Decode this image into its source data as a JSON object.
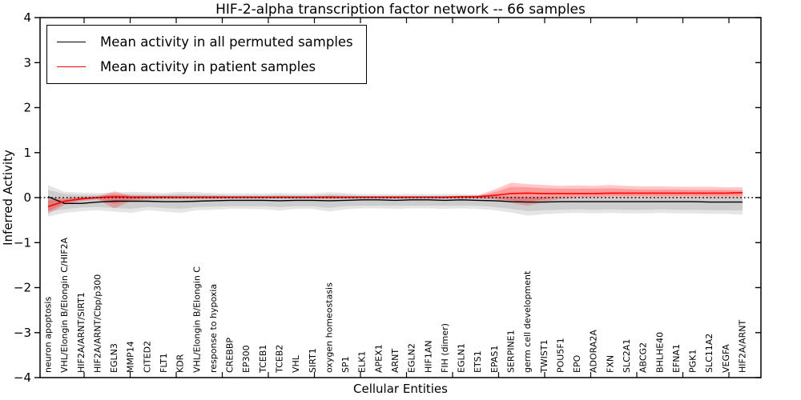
{
  "figure": {
    "background": "#ffffff",
    "frame_color": "#000000"
  },
  "axes": {
    "ylabel": "Inferred Activity",
    "xlabel": "Cellular Entities",
    "yticks": [
      "4",
      "3",
      "2",
      "1",
      "0",
      "−1",
      "−2",
      "−3",
      "−4"
    ]
  },
  "legend": {
    "items": [
      {
        "label": "Mean activity in all permuted samples",
        "color": "#000000"
      },
      {
        "label": "Mean activity in patient samples",
        "color": "#ff0000"
      }
    ]
  },
  "chart_data": {
    "type": "line",
    "title": "HIF-2-alpha transcription factor network -- 66 samples",
    "xlabel": "Cellular Entities",
    "ylabel": "Inferred Activity",
    "ylim": [
      -4,
      4
    ],
    "grid": false,
    "legend_position": "upper left",
    "zero_line": {
      "style": "dotted",
      "color": "#000000",
      "y": 0
    },
    "categories": [
      "neuron apoptosis",
      "VHL/Elongin B/Elongin C/HIF2A",
      "HIF2A/ARNT/SIRT1",
      "HIF2A/ARNT/Cbp/p300",
      "EGLN3",
      "MMP14",
      "CITED2",
      "FLT1",
      "KDR",
      "VHL/Elongin B/Elongin C",
      "response to hypoxia",
      "CREBBP",
      "EP300",
      "TCEB1",
      "TCEB2",
      "VHL",
      "SIRT1",
      "oxygen homeostasis",
      "SP1",
      "ELK1",
      "APEX1",
      "ARNT",
      "EGLN2",
      "HIF1AN",
      "FIH (dimer)",
      "EGLN1",
      "ETS1",
      "EPAS1",
      "SERPINE1",
      "germ cell development",
      "TWIST1",
      "POU5F1",
      "EPO",
      "ADORA2A",
      "FXN",
      "SLC2A1",
      "ABCG2",
      "BHLHE40",
      "EFNA1",
      "PGK1",
      "SLC11A2",
      "VEGFA",
      "HIF2A/ARNT"
    ],
    "series": [
      {
        "name": "Mean activity in all permuted samples",
        "color": "#000000",
        "band_color": "#000000",
        "band_alpha": 0.1,
        "values": [
          0.02,
          -0.13,
          -0.13,
          -0.1,
          -0.08,
          -0.08,
          -0.08,
          -0.09,
          -0.09,
          -0.08,
          -0.07,
          -0.06,
          -0.06,
          -0.06,
          -0.07,
          -0.06,
          -0.06,
          -0.07,
          -0.06,
          -0.05,
          -0.05,
          -0.06,
          -0.05,
          -0.05,
          -0.06,
          -0.05,
          -0.06,
          -0.07,
          -0.09,
          -0.1,
          -0.1,
          -0.09,
          -0.09,
          -0.09,
          -0.09,
          -0.09,
          -0.09,
          -0.09,
          -0.09,
          -0.09,
          -0.1,
          -0.1,
          -0.1
        ],
        "band_outer_upper": [
          0.28,
          0.13,
          0.11,
          0.1,
          0.11,
          0.13,
          0.12,
          0.1,
          0.13,
          0.12,
          0.1,
          0.09,
          0.09,
          0.09,
          0.1,
          0.09,
          0.09,
          0.12,
          0.1,
          0.08,
          0.08,
          0.08,
          0.08,
          0.08,
          0.08,
          0.08,
          0.07,
          0.05,
          0.03,
          0.02,
          0.02,
          0.02,
          0.02,
          0.02,
          0.02,
          0.02,
          0.02,
          0.02,
          0.02,
          0.02,
          0.02,
          0.02,
          0.02
        ],
        "band_outer_lower": [
          -0.42,
          -0.34,
          -0.3,
          -0.28,
          -0.31,
          -0.34,
          -0.28,
          -0.31,
          -0.34,
          -0.28,
          -0.27,
          -0.25,
          -0.25,
          -0.26,
          -0.29,
          -0.25,
          -0.25,
          -0.31,
          -0.26,
          -0.24,
          -0.24,
          -0.25,
          -0.24,
          -0.24,
          -0.25,
          -0.24,
          -0.25,
          -0.28,
          -0.33,
          -0.4,
          -0.37,
          -0.35,
          -0.34,
          -0.35,
          -0.34,
          -0.35,
          -0.35,
          -0.34,
          -0.35,
          -0.35,
          -0.36,
          -0.36,
          -0.38
        ],
        "band_inner_upper": [
          0.17,
          0.08,
          0.06,
          0.06,
          0.06,
          0.08,
          0.07,
          0.06,
          0.08,
          0.07,
          0.06,
          0.05,
          0.05,
          0.05,
          0.06,
          0.05,
          0.05,
          0.07,
          0.06,
          0.04,
          0.04,
          0.04,
          0.04,
          0.04,
          0.04,
          0.04,
          0.04,
          0.02,
          0.01,
          0.0,
          0.0,
          0.0,
          0.0,
          0.0,
          0.0,
          0.0,
          0.0,
          0.0,
          0.0,
          0.0,
          0.0,
          0.0,
          0.0
        ],
        "band_inner_lower": [
          -0.31,
          -0.26,
          -0.22,
          -0.21,
          -0.23,
          -0.25,
          -0.21,
          -0.23,
          -0.25,
          -0.21,
          -0.2,
          -0.19,
          -0.19,
          -0.19,
          -0.21,
          -0.19,
          -0.19,
          -0.23,
          -0.19,
          -0.18,
          -0.18,
          -0.18,
          -0.18,
          -0.18,
          -0.18,
          -0.18,
          -0.18,
          -0.21,
          -0.25,
          -0.3,
          -0.28,
          -0.27,
          -0.26,
          -0.27,
          -0.26,
          -0.27,
          -0.27,
          -0.26,
          -0.27,
          -0.27,
          -0.28,
          -0.28,
          -0.29
        ]
      },
      {
        "name": "Mean activity in patient samples",
        "color": "#ff0000",
        "band_color": "#ff0000",
        "band_alpha": 0.22,
        "values": [
          -0.2,
          -0.08,
          -0.03,
          0.0,
          0.02,
          0.01,
          0.01,
          0.01,
          0.01,
          0.01,
          0.01,
          0.01,
          0.01,
          0.01,
          0.01,
          0.01,
          0.01,
          0.01,
          0.01,
          0.01,
          0.01,
          0.01,
          0.01,
          0.01,
          0.01,
          0.02,
          0.02,
          0.05,
          0.09,
          0.1,
          0.09,
          0.09,
          0.09,
          0.09,
          0.1,
          0.1,
          0.1,
          0.1,
          0.1,
          0.1,
          0.1,
          0.1,
          0.11
        ],
        "band_outer_upper": [
          0.0,
          -0.01,
          0.02,
          0.03,
          0.14,
          0.05,
          0.04,
          0.04,
          0.04,
          0.04,
          0.04,
          0.03,
          0.03,
          0.03,
          0.03,
          0.03,
          0.03,
          0.04,
          0.03,
          0.03,
          0.03,
          0.03,
          0.03,
          0.03,
          0.03,
          0.04,
          0.05,
          0.18,
          0.33,
          0.3,
          0.28,
          0.26,
          0.27,
          0.26,
          0.28,
          0.26,
          0.25,
          0.25,
          0.24,
          0.24,
          0.24,
          0.23,
          0.23
        ],
        "band_outer_lower": [
          -0.36,
          -0.16,
          -0.08,
          -0.04,
          -0.24,
          -0.08,
          -0.04,
          -0.03,
          -0.03,
          -0.03,
          -0.03,
          -0.02,
          -0.02,
          -0.02,
          -0.02,
          -0.02,
          -0.02,
          -0.03,
          -0.02,
          -0.02,
          -0.02,
          -0.02,
          -0.02,
          -0.02,
          -0.02,
          -0.02,
          -0.02,
          -0.04,
          -0.12,
          -0.18,
          -0.1,
          -0.03,
          -0.01,
          0.0,
          0.0,
          0.0,
          0.0,
          0.0,
          0.0,
          0.0,
          0.0,
          0.0,
          0.0
        ],
        "band_inner_upper": [
          -0.06,
          -0.04,
          0.01,
          0.02,
          0.08,
          0.03,
          0.03,
          0.03,
          0.02,
          0.02,
          0.02,
          0.02,
          0.02,
          0.02,
          0.02,
          0.02,
          0.02,
          0.03,
          0.02,
          0.02,
          0.02,
          0.02,
          0.02,
          0.02,
          0.02,
          0.03,
          0.04,
          0.12,
          0.24,
          0.23,
          0.21,
          0.2,
          0.2,
          0.2,
          0.21,
          0.19,
          0.18,
          0.18,
          0.18,
          0.17,
          0.17,
          0.17,
          0.16
        ],
        "band_inner_lower": [
          -0.3,
          -0.12,
          -0.05,
          -0.02,
          -0.14,
          -0.05,
          -0.02,
          -0.01,
          -0.01,
          -0.01,
          -0.01,
          -0.01,
          -0.01,
          -0.01,
          -0.01,
          -0.01,
          -0.01,
          -0.01,
          -0.01,
          -0.01,
          -0.01,
          -0.01,
          -0.01,
          -0.01,
          -0.01,
          -0.01,
          0.0,
          -0.01,
          -0.06,
          -0.1,
          -0.04,
          0.01,
          0.02,
          0.02,
          0.03,
          0.03,
          0.03,
          0.03,
          0.03,
          0.03,
          0.03,
          0.03,
          0.03
        ]
      }
    ]
  }
}
